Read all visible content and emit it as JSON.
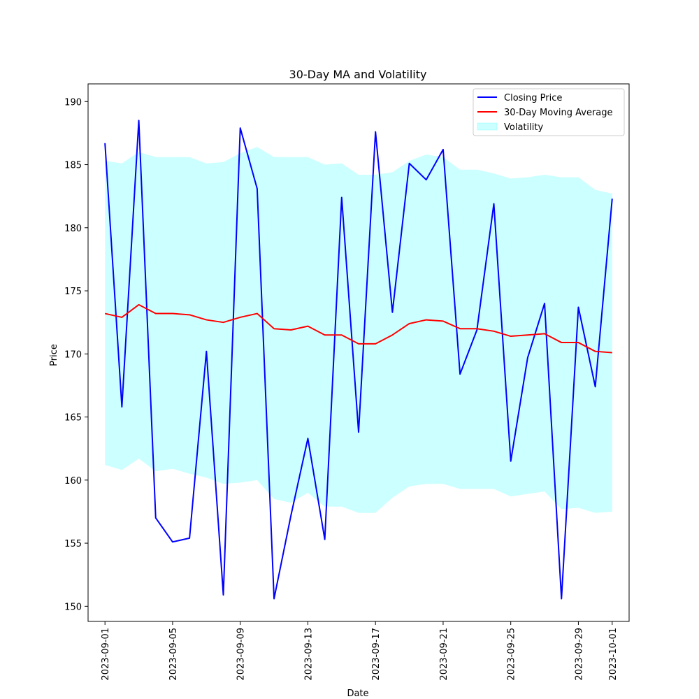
{
  "chart_data": {
    "type": "line",
    "title": "30-Day MA and Volatility",
    "xlabel": "Date",
    "ylabel": "Price",
    "x": [
      "2023-09-01",
      "2023-09-02",
      "2023-09-03",
      "2023-09-04",
      "2023-09-05",
      "2023-09-06",
      "2023-09-07",
      "2023-09-08",
      "2023-09-09",
      "2023-09-10",
      "2023-09-11",
      "2023-09-12",
      "2023-09-13",
      "2023-09-14",
      "2023-09-15",
      "2023-09-16",
      "2023-09-17",
      "2023-09-18",
      "2023-09-19",
      "2023-09-20",
      "2023-09-21",
      "2023-09-22",
      "2023-09-23",
      "2023-09-24",
      "2023-09-25",
      "2023-09-26",
      "2023-09-27",
      "2023-09-28",
      "2023-09-29",
      "2023-09-30",
      "2023-10-01"
    ],
    "xticks": [
      "2023-09-01",
      "2023-09-05",
      "2023-09-09",
      "2023-09-13",
      "2023-09-17",
      "2023-09-21",
      "2023-09-25",
      "2023-09-29",
      "2023-10-01"
    ],
    "xlim": [
      "2023-08-31",
      "2023-10-02"
    ],
    "ylim": [
      148.8,
      191.4
    ],
    "yticks": [
      150,
      155,
      160,
      165,
      170,
      175,
      180,
      185,
      190
    ],
    "grid": false,
    "legend_position": "top-right",
    "series": [
      {
        "name": "Closing Price",
        "kind": "line",
        "color": "#0000ff",
        "values": [
          186.7,
          165.8,
          188.5,
          157.0,
          155.1,
          155.4,
          170.2,
          150.9,
          187.9,
          183.1,
          150.6,
          157.2,
          163.3,
          155.3,
          182.4,
          163.8,
          187.6,
          173.3,
          185.1,
          183.8,
          186.2,
          168.4,
          171.9,
          181.9,
          161.5,
          169.7,
          174.0,
          150.6,
          173.7,
          167.4,
          182.3
        ]
      },
      {
        "name": "30-Day Moving Average",
        "kind": "line",
        "color": "#ff0000",
        "values": [
          173.2,
          172.9,
          173.9,
          173.2,
          173.2,
          173.1,
          172.7,
          172.5,
          172.9,
          173.2,
          172.0,
          171.9,
          172.2,
          171.5,
          171.5,
          170.8,
          170.8,
          171.5,
          172.4,
          172.7,
          172.6,
          172.0,
          172.0,
          171.8,
          171.4,
          171.5,
          171.6,
          170.9,
          170.9,
          170.2,
          170.1
        ]
      },
      {
        "name": "Volatility",
        "kind": "band",
        "color": "#00ffff",
        "upper": [
          185.3,
          185.1,
          186.0,
          185.6,
          185.6,
          185.6,
          185.1,
          185.2,
          185.9,
          186.4,
          185.6,
          185.6,
          185.6,
          185.0,
          185.1,
          184.2,
          184.2,
          184.4,
          185.3,
          185.8,
          185.6,
          184.6,
          184.6,
          184.3,
          183.9,
          184.0,
          184.2,
          184.0,
          184.0,
          183.0,
          182.7
        ],
        "lower": [
          161.2,
          160.8,
          161.7,
          160.7,
          160.9,
          160.5,
          160.2,
          159.7,
          159.8,
          160.0,
          158.5,
          158.2,
          159.0,
          157.9,
          157.9,
          157.4,
          157.4,
          158.6,
          159.5,
          159.7,
          159.7,
          159.3,
          159.3,
          159.3,
          158.7,
          158.9,
          159.1,
          157.7,
          157.8,
          157.4,
          157.5
        ]
      }
    ]
  }
}
